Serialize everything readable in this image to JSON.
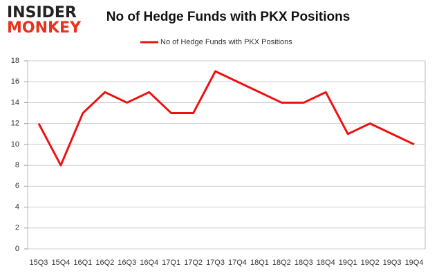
{
  "logo": {
    "line1": "INSIDER",
    "line2": "MONKEY"
  },
  "chart_data": {
    "type": "line",
    "title": "No of Hedge Funds with PKX Positions",
    "categories": [
      "15Q3",
      "15Q4",
      "16Q1",
      "16Q2",
      "16Q3",
      "16Q4",
      "17Q1",
      "17Q2",
      "17Q3",
      "17Q4",
      "18Q1",
      "18Q2",
      "18Q3",
      "18Q4",
      "19Q1",
      "19Q2",
      "19Q3",
      "19Q4"
    ],
    "series": [
      {
        "name": "No of Hedge Funds with PKX Positions",
        "color": "#ee1111",
        "values": [
          12,
          8,
          13,
          15,
          14,
          15,
          13,
          13,
          17,
          16,
          15,
          14,
          14,
          15,
          11,
          12,
          11,
          10
        ]
      }
    ],
    "ylim": [
      0,
      18
    ],
    "yticks": [
      0,
      2,
      4,
      6,
      8,
      10,
      12,
      14,
      16,
      18
    ],
    "grid": true,
    "legend": "top"
  }
}
